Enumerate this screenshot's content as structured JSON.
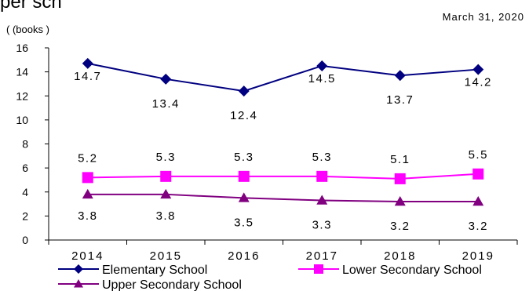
{
  "header_fragment": "per sch",
  "date_note": "March 31, 2020",
  "chart_data": {
    "type": "line",
    "title": "",
    "ylabel": "( (books )",
    "xlabel": "",
    "categories": [
      "2014",
      "2015",
      "2016",
      "2017",
      "2018",
      "2019"
    ],
    "ylim": [
      0,
      16
    ],
    "yticks": [
      0,
      2,
      4,
      6,
      8,
      10,
      12,
      14,
      16
    ],
    "grid": false,
    "legend_position": "bottom",
    "series": [
      {
        "name": "Elementary School",
        "values": [
          14.7,
          13.4,
          12.4,
          14.5,
          13.7,
          14.2
        ],
        "labels": [
          "14.7",
          "13.4",
          "12.4",
          "14.5",
          "13.7",
          "14.2"
        ],
        "color": "#000080",
        "marker": "diamond"
      },
      {
        "name": "Lower Secondary School",
        "values": [
          5.2,
          5.3,
          5.3,
          5.3,
          5.1,
          5.5
        ],
        "labels": [
          "5.2",
          "5.3",
          "5.3",
          "5.3",
          "5.1",
          "5.5"
        ],
        "color": "#ff00ff",
        "marker": "square"
      },
      {
        "name": "Upper Secondary School",
        "values": [
          3.8,
          3.8,
          3.5,
          3.3,
          3.2,
          3.2
        ],
        "labels": [
          "3.8",
          "3.8",
          "3.5",
          "3.3",
          "3.2",
          "3.2"
        ],
        "color": "#800080",
        "marker": "triangle"
      }
    ]
  }
}
